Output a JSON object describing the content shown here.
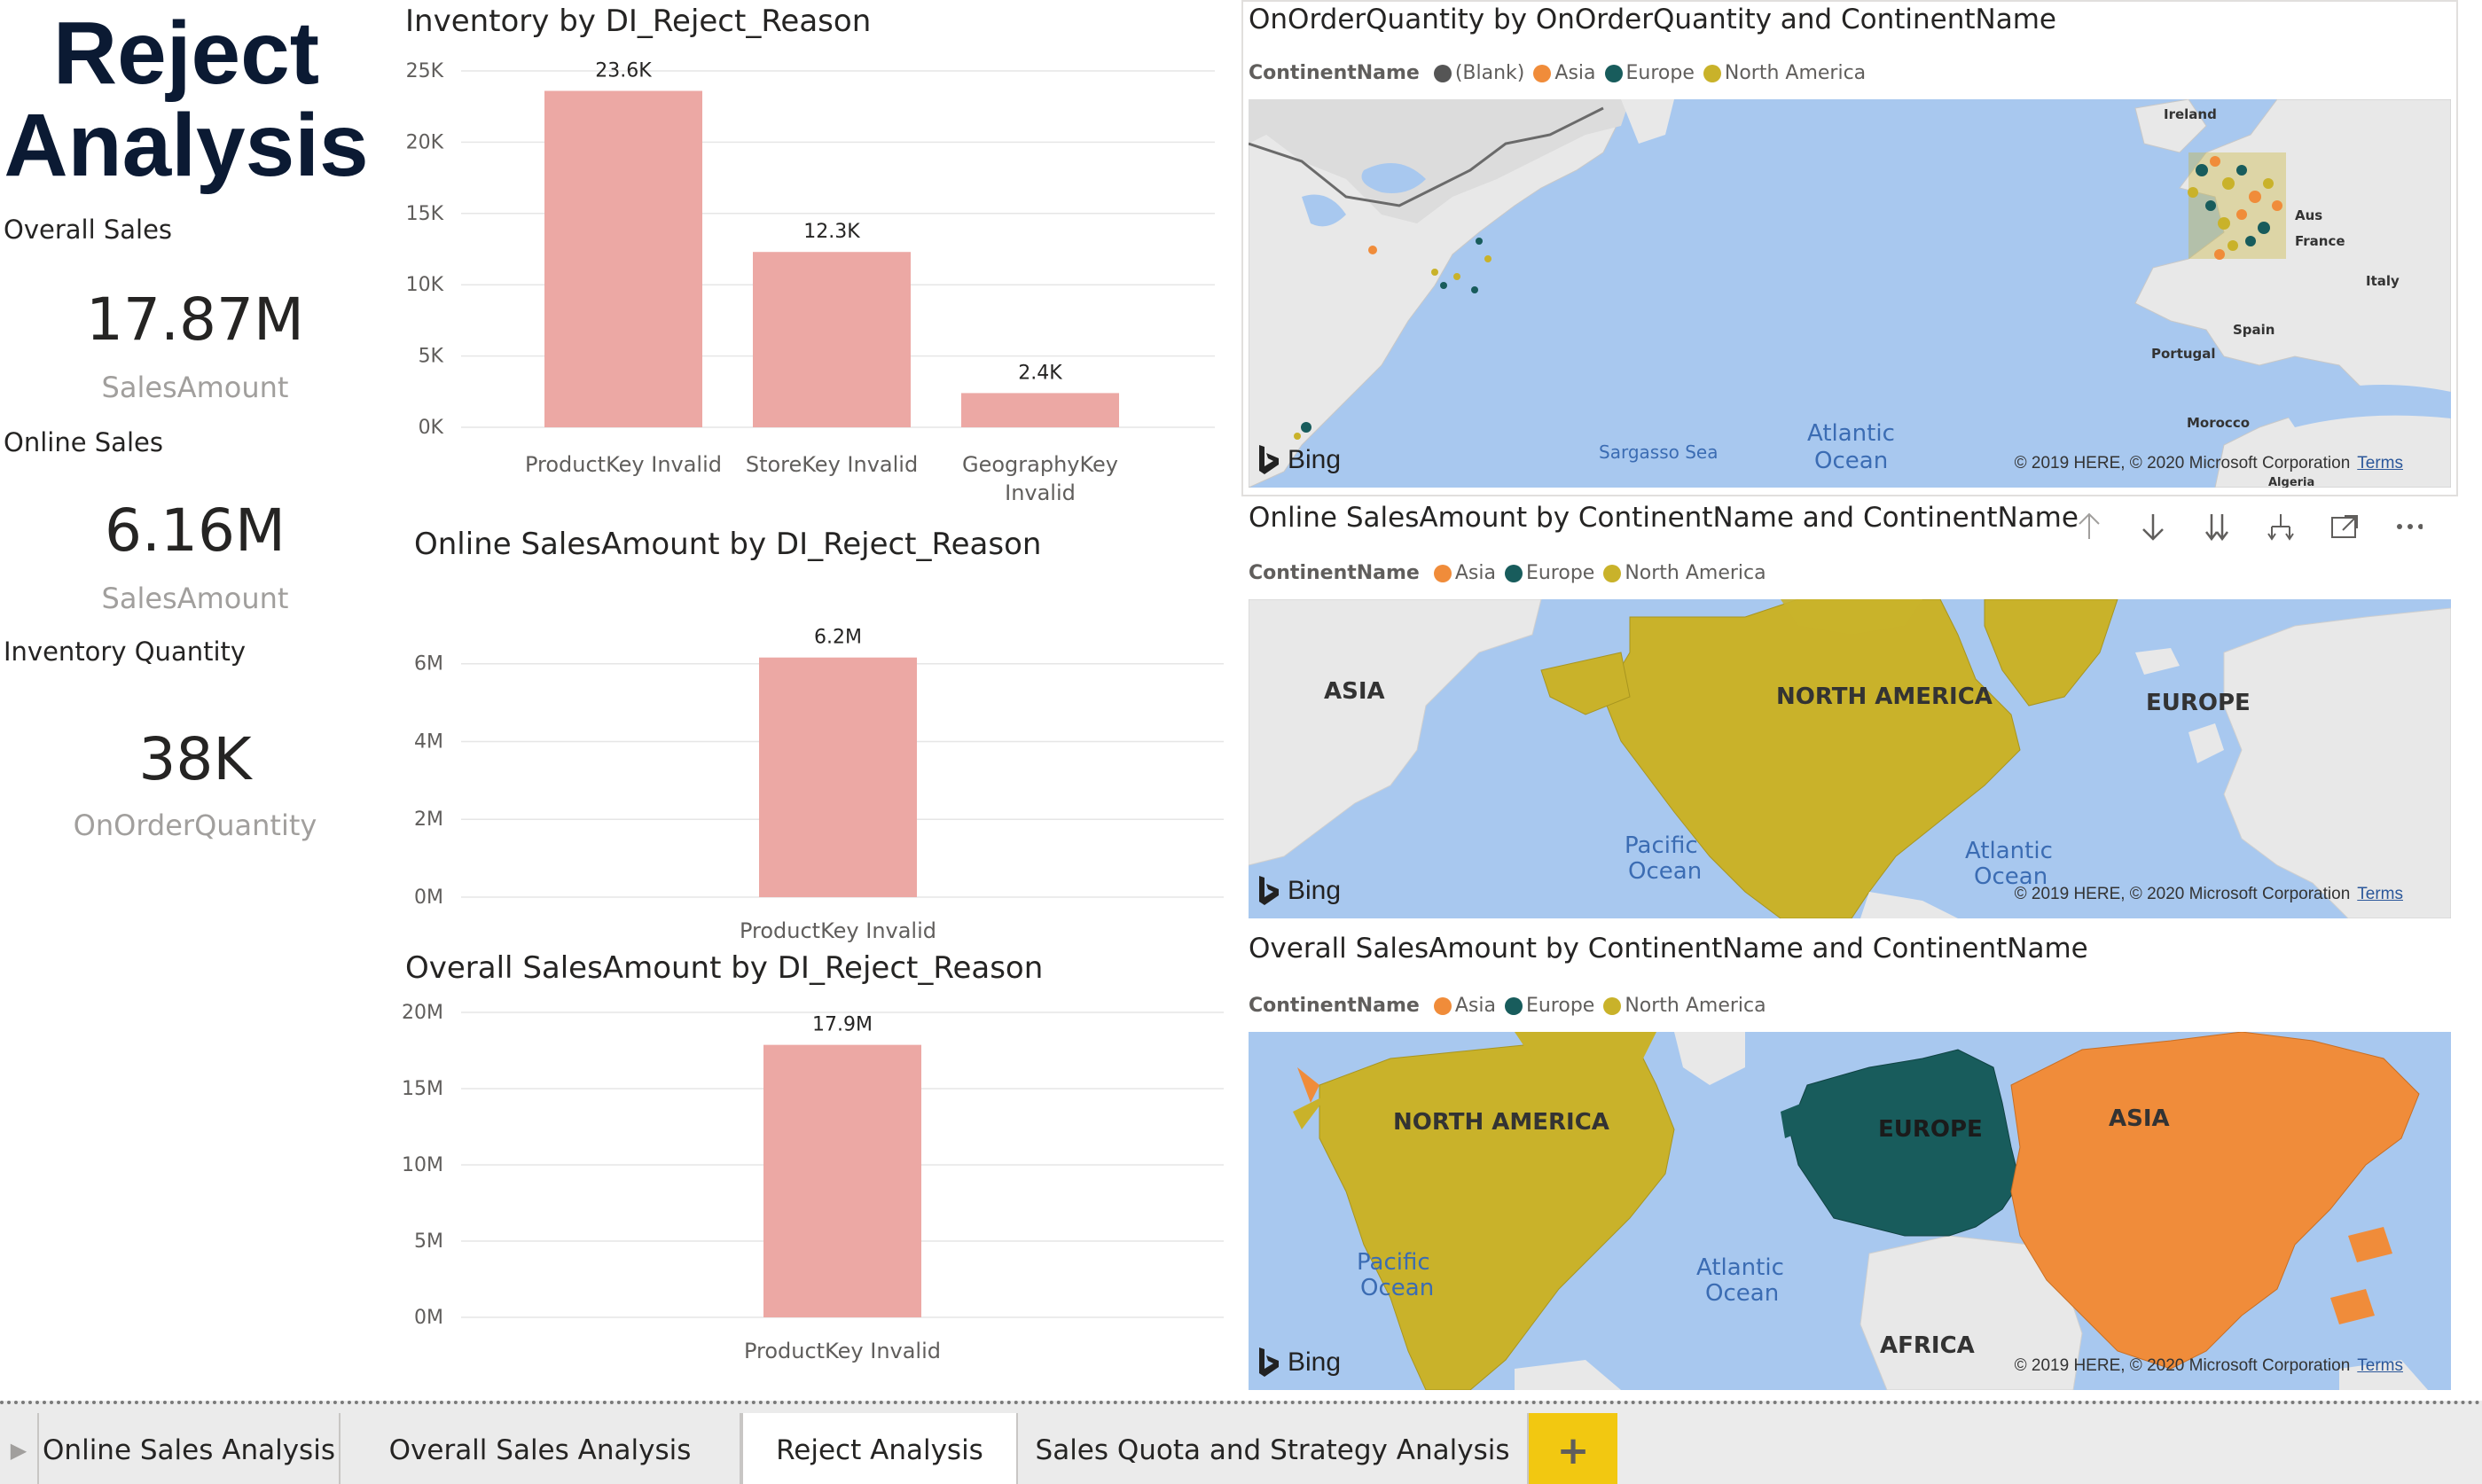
{
  "page": {
    "title_line1": "Reject",
    "title_line2": "Analysis"
  },
  "kpis": [
    {
      "label": "Overall Sales",
      "value": "17.87M",
      "measure": "SalesAmount"
    },
    {
      "label": "Online Sales",
      "value": "6.16M",
      "measure": "SalesAmount"
    },
    {
      "label": "Inventory Quantity",
      "value": "38K",
      "measure": "OnOrderQuantity"
    }
  ],
  "chart_data": [
    {
      "type": "bar",
      "title": "Inventory by DI_Reject_Reason",
      "categories": [
        "ProductKey Invalid",
        "StoreKey Invalid",
        "GeographyKey Invalid"
      ],
      "category_lines": [
        [
          "ProductKey Invalid"
        ],
        [
          "StoreKey Invalid"
        ],
        [
          "GeographyKey",
          "Invalid"
        ]
      ],
      "values": [
        23600,
        12300,
        2400
      ],
      "data_labels": [
        "23.6K",
        "12.3K",
        "2.4K"
      ],
      "ylim": [
        0,
        25000
      ],
      "yticks": [
        0,
        5000,
        10000,
        15000,
        20000,
        25000
      ],
      "ytick_labels": [
        "0K",
        "5K",
        "10K",
        "15K",
        "20K",
        "25K"
      ],
      "bar_color": "#eca8a4",
      "grid": true
    },
    {
      "type": "bar",
      "title": "Online SalesAmount by DI_Reject_Reason",
      "categories": [
        "ProductKey Invalid"
      ],
      "category_lines": [
        [
          "ProductKey Invalid"
        ]
      ],
      "values": [
        6160000
      ],
      "data_labels": [
        "6.2M"
      ],
      "ylim": [
        0,
        6700000
      ],
      "yticks": [
        0,
        2000000,
        4000000,
        6000000
      ],
      "ytick_labels": [
        "0M",
        "2M",
        "4M",
        "6M"
      ],
      "bar_color": "#eca8a4",
      "grid": true
    },
    {
      "type": "bar",
      "title": "Overall SalesAmount by DI_Reject_Reason",
      "categories": [
        "ProductKey Invalid"
      ],
      "category_lines": [
        [
          "ProductKey Invalid"
        ]
      ],
      "values": [
        17870000
      ],
      "data_labels": [
        "17.9M"
      ],
      "ylim": [
        0,
        20000000
      ],
      "yticks": [
        0,
        5000000,
        10000000,
        15000000,
        20000000
      ],
      "ytick_labels": [
        "0M",
        "5M",
        "10M",
        "15M",
        "20M"
      ],
      "bar_color": "#eca8a4",
      "grid": true
    }
  ],
  "maps": {
    "map1": {
      "title": "OnOrderQuantity by OnOrderQuantity and ContinentName",
      "legend_title": "ContinentName",
      "legend": [
        {
          "name": "(Blank)",
          "color": "#555555"
        },
        {
          "name": "Asia",
          "color": "#f08c3a"
        },
        {
          "name": "Europe",
          "color": "#185c5c"
        },
        {
          "name": "North America",
          "color": "#c9b22a"
        }
      ],
      "labels": {
        "ireland": "Ireland",
        "france": "France",
        "aus": "Aus",
        "italy": "Italy",
        "spain": "Spain",
        "portugal": "Portugal",
        "morocco": "Morocco",
        "algeria": "Algeria",
        "sargasso": "Sargasso Sea",
        "atlantic_1": "Atlantic",
        "atlantic_2": "Ocean"
      }
    },
    "map2": {
      "title": "Online SalesAmount by ContinentName and ContinentName",
      "legend_title": "ContinentName",
      "legend": [
        {
          "name": "Asia",
          "color": "#f08c3a"
        },
        {
          "name": "Europe",
          "color": "#185c5c"
        },
        {
          "name": "North America",
          "color": "#c9b22a"
        }
      ],
      "labels": {
        "asia": "ASIA",
        "north_america": "NORTH AMERICA",
        "europe": "EUROPE",
        "pacific_1": "Pacific",
        "pacific_2": "Ocean",
        "atlantic_1": "Atlantic",
        "atlantic_2": "Ocean"
      }
    },
    "map3": {
      "title": "Overall SalesAmount by ContinentName and ContinentName",
      "legend_title": "ContinentName",
      "legend": [
        {
          "name": "Asia",
          "color": "#f08c3a"
        },
        {
          "name": "Europe",
          "color": "#185c5c"
        },
        {
          "name": "North America",
          "color": "#c9b22a"
        }
      ],
      "labels": {
        "north_america": "NORTH AMERICA",
        "europe": "EUROPE",
        "asia": "ASIA",
        "africa": "AFRICA",
        "pacific_1": "Pacific",
        "pacific_2": "Ocean",
        "atlantic_1": "Atlantic",
        "atlantic_2": "Ocean"
      }
    },
    "bing_label": "Bing",
    "attribution": "© 2019 HERE, © 2020 Microsoft Corporation",
    "terms": "Terms"
  },
  "tabs": [
    {
      "label": "Online Sales Analysis",
      "active": false
    },
    {
      "label": "Overall Sales Analysis",
      "active": false
    },
    {
      "label": "Reject Analysis",
      "active": true
    },
    {
      "label": "Sales Quota and Strategy Analysis",
      "active": false
    }
  ],
  "tab_add_label": "+",
  "icons": {
    "scroll_left": "chevron-right-icon",
    "drill_up": "arrow-up-icon",
    "drill_down": "arrow-down-icon",
    "expand_all": "double-arrow-down-icon",
    "drill_hierarchy": "fork-arrow-icon",
    "focus_mode": "focus-mode-icon",
    "more_options": "more-options-icon"
  }
}
